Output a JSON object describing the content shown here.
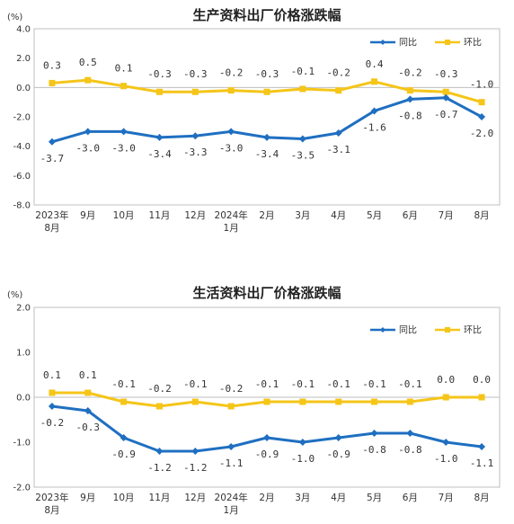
{
  "colors": {
    "yoy": "#1f6fc1",
    "mom": "#f5c518",
    "axis": "#bfbfbf"
  },
  "chart_data": [
    {
      "type": "line",
      "title": "生产资料出厂价格涨跌幅",
      "unit": "(%)",
      "ylim": [
        -8.0,
        4.0
      ],
      "yticks": [
        "4.0",
        "2.0",
        "0.0",
        "-2.0",
        "-4.0",
        "-6.0",
        "-8.0"
      ],
      "ytick_values": [
        4,
        2,
        0,
        -2,
        -4,
        -6,
        -8
      ],
      "categories": [
        "2023年8月",
        "9月",
        "10月",
        "11月",
        "12月",
        "2024年1月",
        "2月",
        "3月",
        "4月",
        "5月",
        "6月",
        "7月",
        "8月"
      ],
      "xtick_lines": [
        [
          "2023年",
          "8月"
        ],
        [
          "9月"
        ],
        [
          "10月"
        ],
        [
          "11月"
        ],
        [
          "12月"
        ],
        [
          "2024年",
          "1月"
        ],
        [
          "2月"
        ],
        [
          "3月"
        ],
        [
          "4月"
        ],
        [
          "5月"
        ],
        [
          "6月"
        ],
        [
          "7月"
        ],
        [
          "8月"
        ]
      ],
      "legend_position": "top-right",
      "series": [
        {
          "name": "同比",
          "key": "yoy",
          "values": [
            -3.7,
            -3.0,
            -3.0,
            -3.4,
            -3.3,
            -3.0,
            -3.4,
            -3.5,
            -3.1,
            -1.6,
            -0.8,
            -0.7,
            -2.0
          ],
          "labels": [
            "-3.7",
            "-3.0",
            "-3.0",
            "-3.4",
            "-3.3",
            "-3.0",
            "-3.4",
            "-3.5",
            "-3.1",
            "-1.6",
            "-0.8",
            "-0.7",
            "-2.0"
          ]
        },
        {
          "name": "环比",
          "key": "mom",
          "values": [
            0.3,
            0.5,
            0.1,
            -0.3,
            -0.3,
            -0.2,
            -0.3,
            -0.1,
            -0.2,
            0.4,
            -0.2,
            -0.3,
            -1.0
          ],
          "labels": [
            "0.3",
            "0.5",
            "0.1",
            "-0.3",
            "-0.3",
            "-0.2",
            "-0.3",
            "-0.1",
            "-0.2",
            "0.4",
            "-0.2",
            "-0.3",
            "-1.0"
          ]
        }
      ]
    },
    {
      "type": "line",
      "title": "生活资料出厂价格涨跌幅",
      "unit": "(%)",
      "ylim": [
        -2.0,
        2.0
      ],
      "yticks": [
        "2.0",
        "1.0",
        "0.0",
        "-1.0",
        "-2.0"
      ],
      "ytick_values": [
        2,
        1,
        0,
        -1,
        -2
      ],
      "categories": [
        "2023年8月",
        "9月",
        "10月",
        "11月",
        "12月",
        "2024年1月",
        "2月",
        "3月",
        "4月",
        "5月",
        "6月",
        "7月",
        "8月"
      ],
      "xtick_lines": [
        [
          "2023年",
          "8月"
        ],
        [
          "9月"
        ],
        [
          "10月"
        ],
        [
          "11月"
        ],
        [
          "12月"
        ],
        [
          "2024年",
          "1月"
        ],
        [
          "2月"
        ],
        [
          "3月"
        ],
        [
          "4月"
        ],
        [
          "5月"
        ],
        [
          "6月"
        ],
        [
          "7月"
        ],
        [
          "8月"
        ]
      ],
      "legend_position": "top-right",
      "series": [
        {
          "name": "同比",
          "key": "yoy",
          "values": [
            -0.2,
            -0.3,
            -0.9,
            -1.2,
            -1.2,
            -1.1,
            -0.9,
            -1.0,
            -0.9,
            -0.8,
            -0.8,
            -1.0,
            -1.1
          ],
          "labels": [
            "-0.2",
            "-0.3",
            "-0.9",
            "-1.2",
            "-1.2",
            "-1.1",
            "-0.9",
            "-1.0",
            "-0.9",
            "-0.8",
            "-0.8",
            "-1.0",
            "-1.1"
          ]
        },
        {
          "name": "环比",
          "key": "mom",
          "values": [
            0.1,
            0.1,
            -0.1,
            -0.2,
            -0.1,
            -0.2,
            -0.1,
            -0.1,
            -0.1,
            -0.1,
            -0.1,
            0.0,
            0.0
          ],
          "labels": [
            "0.1",
            "0.1",
            "-0.1",
            "-0.2",
            "-0.1",
            "-0.2",
            "-0.1",
            "-0.1",
            "-0.1",
            "-0.1",
            "-0.1",
            "0.0",
            "0.0"
          ]
        }
      ]
    }
  ]
}
